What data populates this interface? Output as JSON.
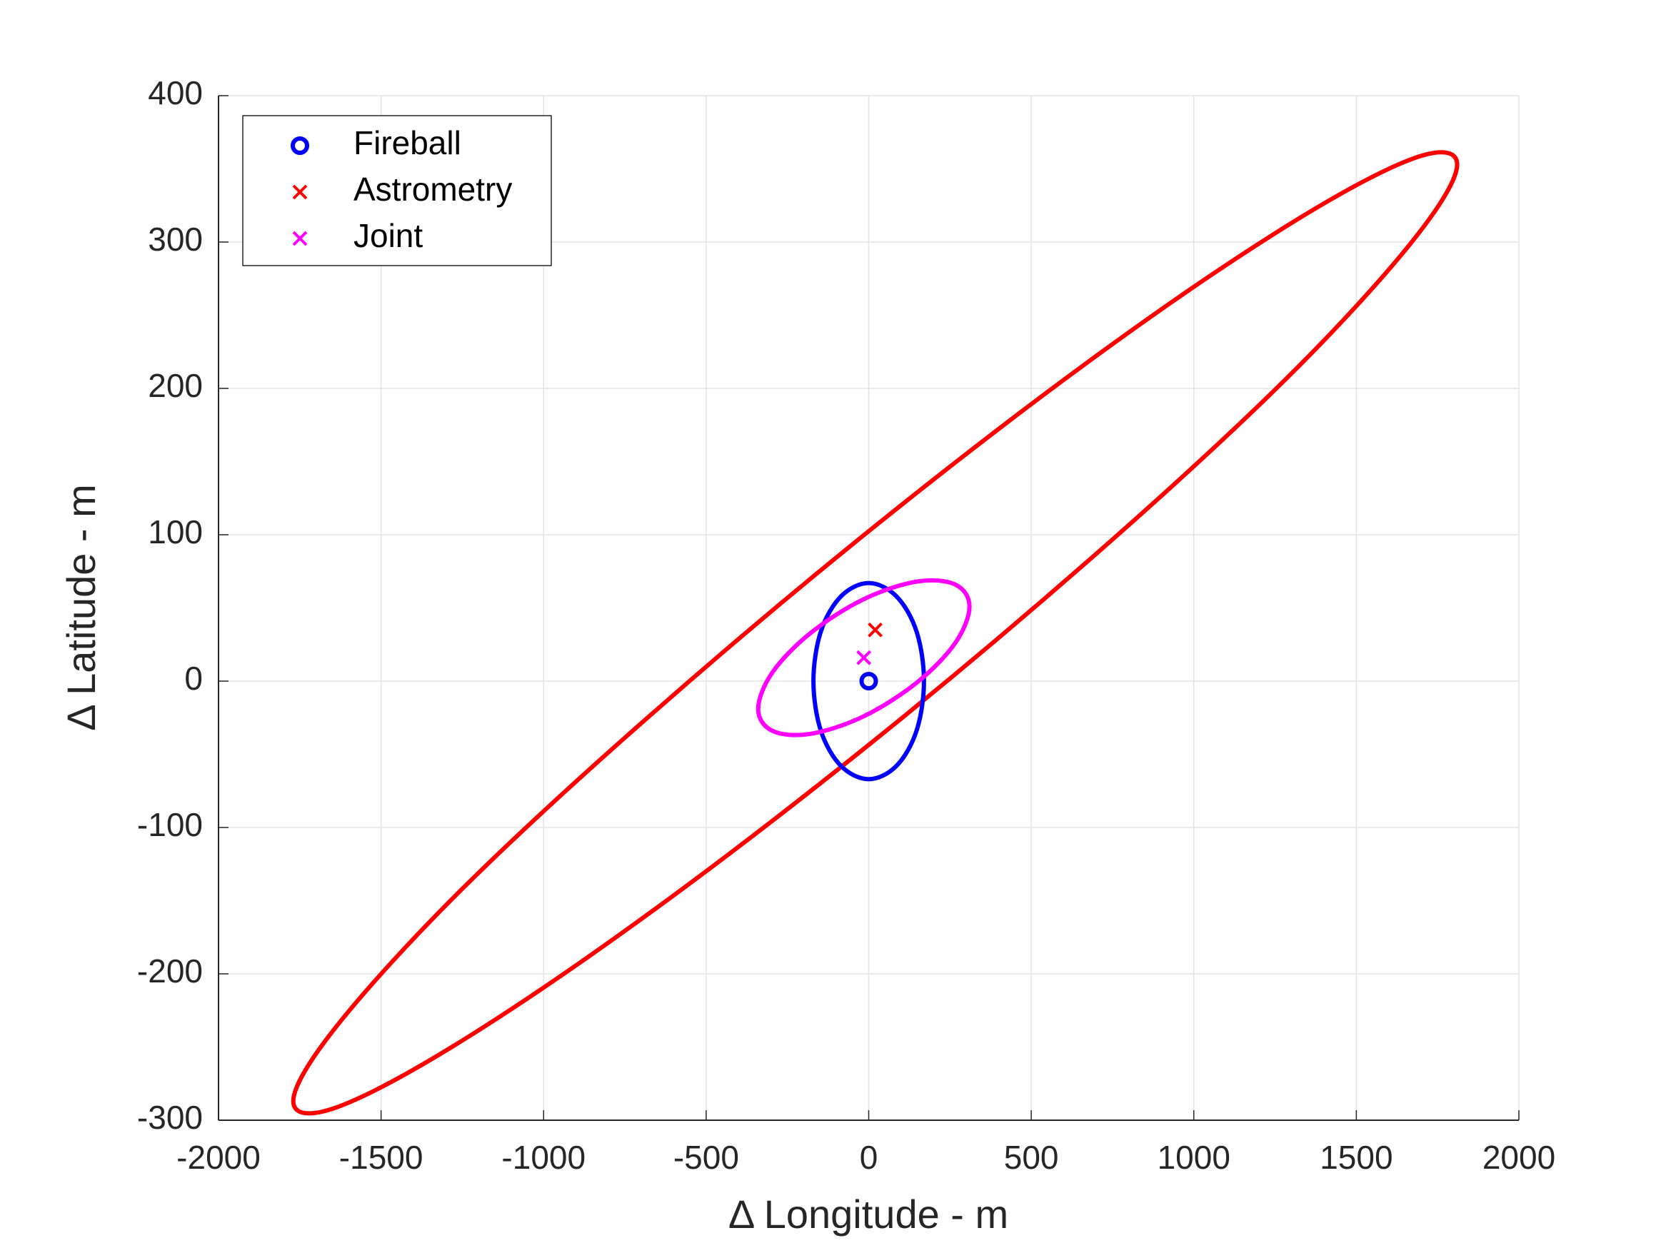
{
  "chart_data": {
    "type": "scatter",
    "xlabel": "Δ Longitude - m",
    "ylabel": "Δ Latitude - m",
    "xlim": [
      -2000,
      2000
    ],
    "xticks": [
      -2000,
      -1500,
      -1000,
      -500,
      0,
      500,
      1000,
      1500,
      2000
    ],
    "ylim": [
      -300,
      400
    ],
    "yticks": [
      -300,
      -200,
      -100,
      0,
      100,
      200,
      300,
      400
    ],
    "grid": true,
    "legend": "upper left",
    "series": [
      {
        "name": "Fireball",
        "color": "#0000ff",
        "marker": "o",
        "x": [
          0
        ],
        "values": [
          0
        ]
      },
      {
        "name": "Astrometry",
        "color": "#ff0000",
        "marker": "x",
        "x": [
          20
        ],
        "values": [
          35
        ]
      },
      {
        "name": "Joint",
        "color": "#ff00ff",
        "marker": "x",
        "x": [
          -15
        ],
        "values": [
          16
        ]
      }
    ],
    "ellipses": [
      {
        "color": "#ff0000",
        "x": [
          1810,
          1674,
          1286,
          705,
          20,
          -665,
          -1246,
          -1634,
          -1770,
          -1634,
          -1246,
          -665,
          20,
          705,
          1286,
          1674
        ],
        "values": [
          353,
          357,
          311,
          223,
          106,
          -22,
          -141,
          -235,
          -287,
          -291,
          -245,
          -157,
          -40,
          88,
          207,
          301
        ]
      },
      {
        "color": "#0000ff",
        "x": [
          170,
          147,
          85,
          0,
          -85,
          -147,
          -170,
          -147,
          -85,
          0,
          85,
          147
        ],
        "values": [
          0,
          34,
          58,
          67,
          58,
          34,
          0,
          -34,
          -58,
          -67,
          -58,
          -34
        ]
      },
      {
        "color": "#ff00ff",
        "x": [
          310,
          266,
          148,
          -15,
          -178,
          -296,
          -340,
          -296,
          -178,
          -15,
          148,
          266
        ],
        "values": [
          51,
          66,
          68,
          56,
          33,
          6,
          -19,
          -34,
          -36,
          -24,
          -1,
          26
        ]
      }
    ]
  }
}
